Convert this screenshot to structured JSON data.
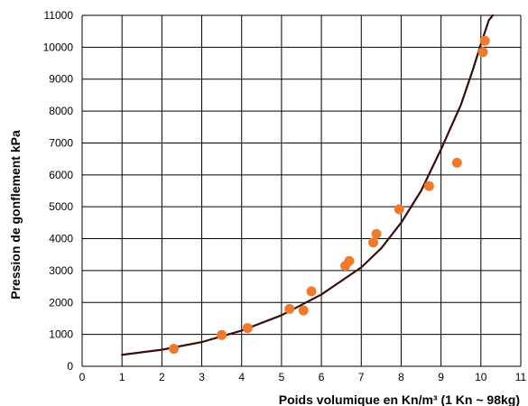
{
  "chart_data": {
    "type": "scatter",
    "title": "",
    "xlabel": "Poids volumique en Kn/m³ (1 Kn ~ 98kg)",
    "ylabel": "Pression de gonflement kPa",
    "xlim": [
      0,
      11
    ],
    "ylim": [
      0,
      11000
    ],
    "x_ticks": [
      "0",
      "1",
      "2",
      "3",
      "4",
      "5",
      "6",
      "7",
      "8",
      "9",
      "10",
      "11"
    ],
    "y_ticks": [
      "0",
      "1000",
      "2000",
      "3000",
      "4000",
      "5000",
      "6000",
      "7000",
      "8000",
      "9000",
      "10000",
      "11000"
    ],
    "grid": true,
    "colors": {
      "points": "#f07a2a",
      "curve": "#3a0d0d",
      "grid": "#000000"
    },
    "series": [
      {
        "type": "scatter",
        "points": [
          [
            2.3,
            550
          ],
          [
            3.5,
            980
          ],
          [
            4.15,
            1200
          ],
          [
            5.2,
            1800
          ],
          [
            5.55,
            1750
          ],
          [
            5.75,
            2350
          ],
          [
            6.6,
            3150
          ],
          [
            6.7,
            3300
          ],
          [
            7.3,
            3880
          ],
          [
            7.38,
            4150
          ],
          [
            7.95,
            4920
          ],
          [
            8.7,
            5650
          ],
          [
            9.4,
            6380
          ],
          [
            10.05,
            9850
          ],
          [
            10.1,
            10200
          ]
        ]
      },
      {
        "type": "line",
        "points": [
          [
            1.0,
            360
          ],
          [
            2.0,
            520
          ],
          [
            3.0,
            760
          ],
          [
            4.0,
            1120
          ],
          [
            5.0,
            1600
          ],
          [
            6.0,
            2250
          ],
          [
            7.0,
            3100
          ],
          [
            7.5,
            3700
          ],
          [
            8.0,
            4500
          ],
          [
            8.5,
            5500
          ],
          [
            9.0,
            6800
          ],
          [
            9.5,
            8200
          ],
          [
            9.8,
            9300
          ],
          [
            10.0,
            10100
          ],
          [
            10.2,
            10850
          ],
          [
            10.3,
            11000
          ]
        ]
      }
    ]
  }
}
